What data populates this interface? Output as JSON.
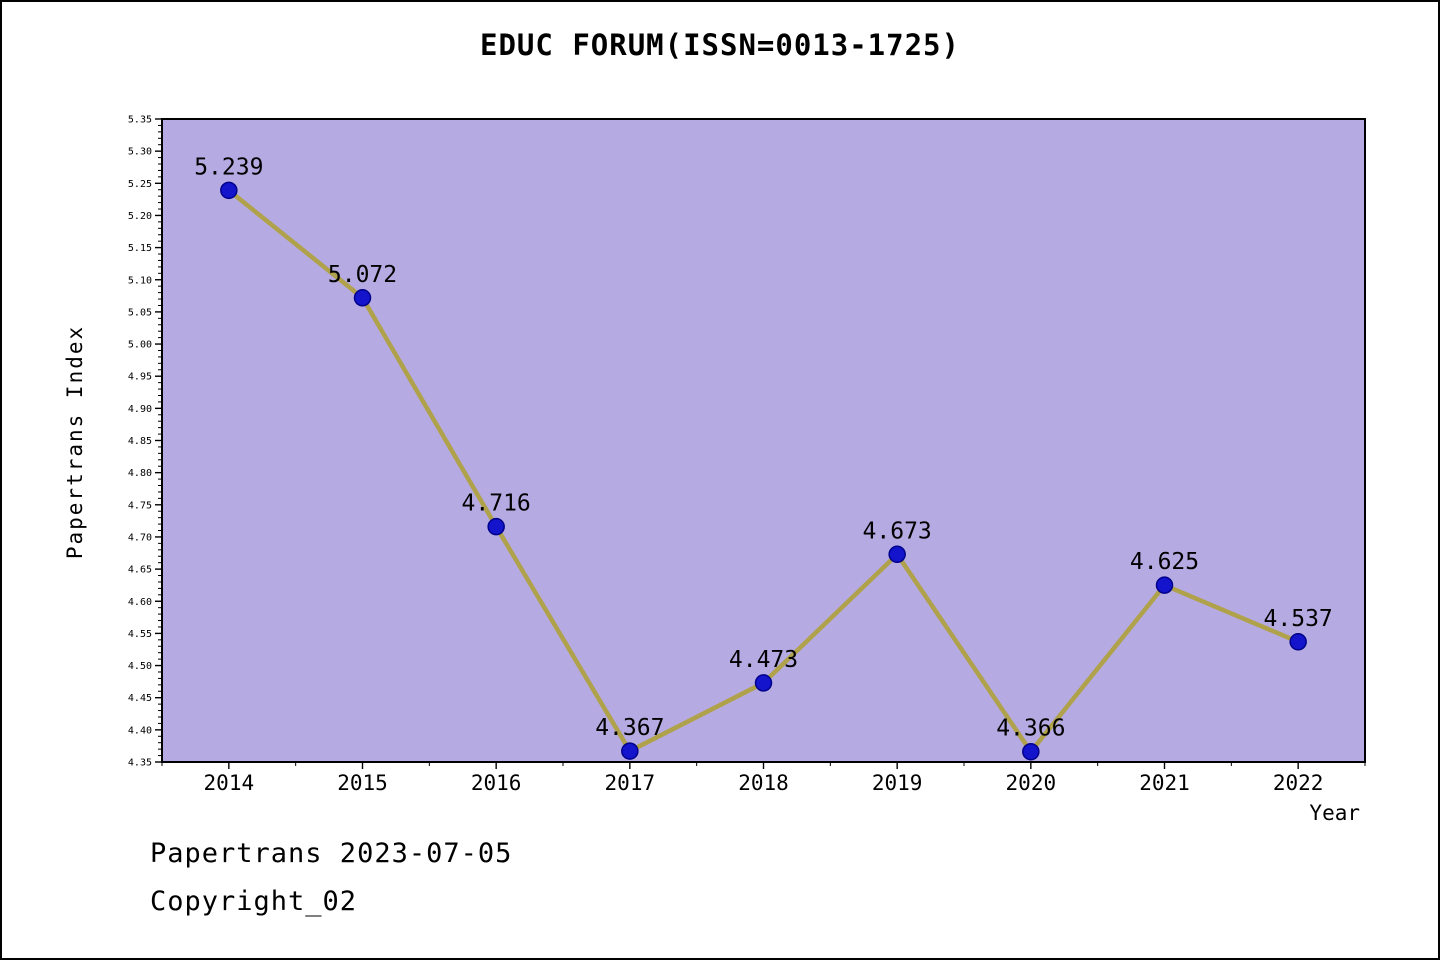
{
  "page": {
    "title": "EDUC FORUM(ISSN=0013-1725)",
    "footer_line1": "Papertrans 2023-07-05",
    "footer_line2": "Copyright_02"
  },
  "chart_data": {
    "type": "line",
    "title": "EDUC FORUM(ISSN=0013-1725)",
    "xlabel": "Year",
    "ylabel": "Papertrans Index",
    "categories": [
      "2014",
      "2015",
      "2016",
      "2017",
      "2018",
      "2019",
      "2020",
      "2021",
      "2022"
    ],
    "series": [
      {
        "name": "Papertrans Index",
        "values": [
          5.239,
          5.072,
          4.716,
          4.367,
          4.473,
          4.673,
          4.366,
          4.625,
          4.537
        ]
      }
    ],
    "point_labels": [
      "5.239",
      "5.072",
      "4.716",
      "4.367",
      "4.473",
      "4.673",
      "4.366",
      "4.625",
      "4.537"
    ],
    "ylim": [
      4.35,
      5.35
    ],
    "ytick_major_step": 0.05,
    "ytick_minor_step": 0.01,
    "grid": false,
    "legend_position": "none",
    "colors": {
      "plot_bg": "#b5abe2",
      "line": "#b0a14b",
      "marker": "#1414cd",
      "marker_edge": "#00008b",
      "axis": "#000000",
      "text": "#000000"
    }
  }
}
